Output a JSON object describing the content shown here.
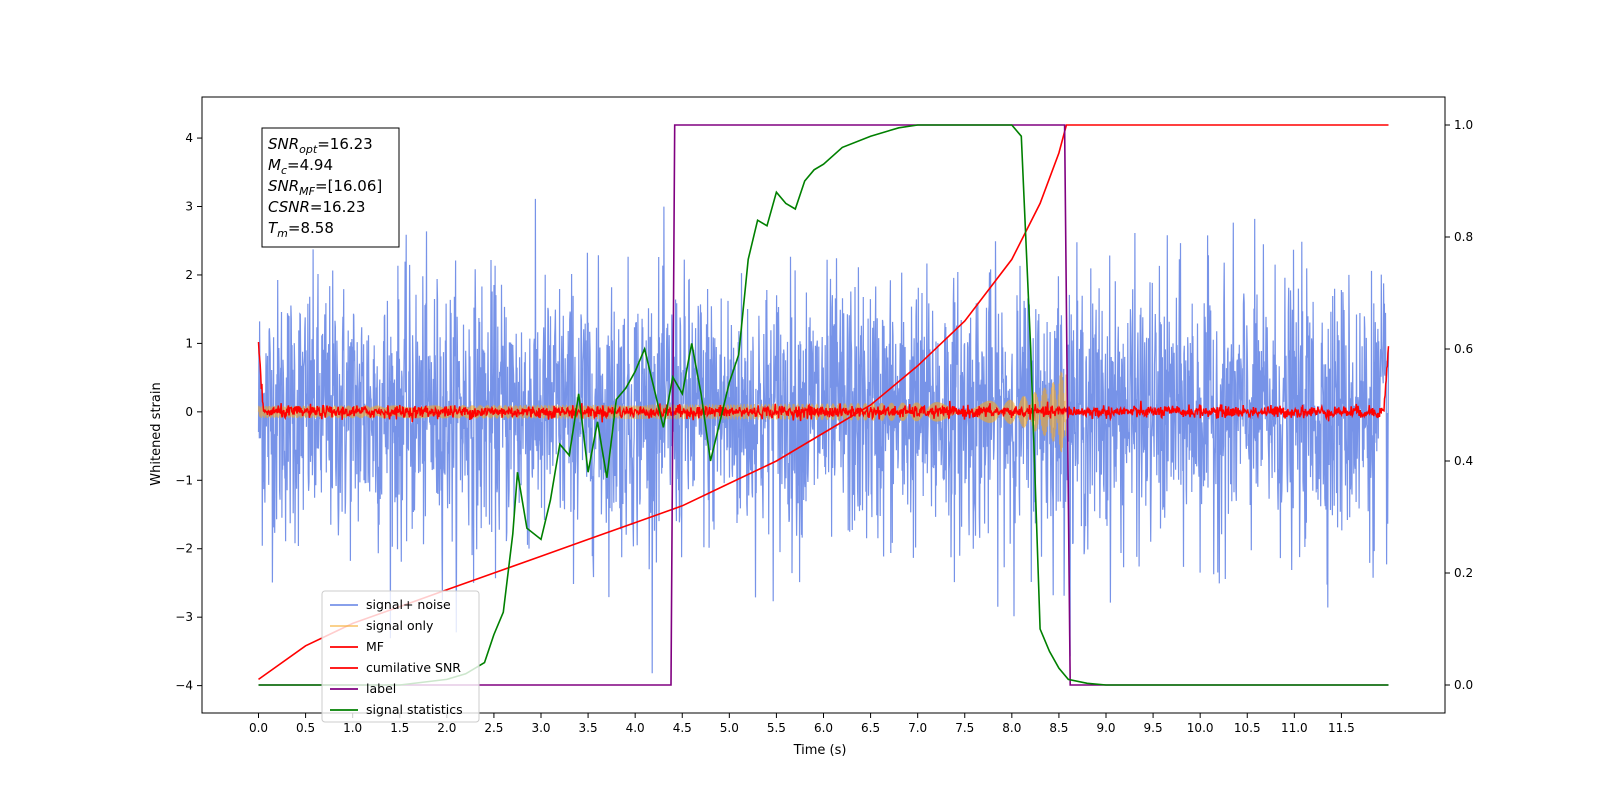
{
  "chart_data": {
    "type": "line",
    "title": "",
    "xlabel": "Time (s)",
    "ylabel": "Whitened strain",
    "y2label": "",
    "xlim": [
      -0.6,
      12.6
    ],
    "ylim": [
      -4.4,
      4.6
    ],
    "y2lim": [
      -0.05,
      1.05
    ],
    "x_ticks": [
      "0.0",
      "0.5",
      "1.0",
      "1.5",
      "2.0",
      "2.5",
      "3.0",
      "3.5",
      "4.0",
      "4.5",
      "5.0",
      "5.5",
      "6.0",
      "6.5",
      "7.0",
      "7.5",
      "8.0",
      "8.5",
      "9.0",
      "9.5",
      "10.0",
      "10.5",
      "11.0",
      "11.5"
    ],
    "y_ticks": [
      "−4",
      "−3",
      "−2",
      "−1",
      "0",
      "1",
      "2",
      "3",
      "4"
    ],
    "y2_ticks": [
      "0.0",
      "0.2",
      "0.4",
      "0.6",
      "0.8",
      "1.0"
    ],
    "grid": false,
    "legend_position": "lower-left",
    "annotation_box": {
      "lines": [
        {
          "sym": "SNR",
          "sub": "opt",
          "value": "=16.23"
        },
        {
          "sym": "M",
          "sub": "c",
          "value": "=4.94"
        },
        {
          "sym": "SNR",
          "sub": "MF",
          "value": "=[16.06]"
        },
        {
          "sym": "CSNR",
          "sub": "",
          "value": "=16.23"
        },
        {
          "sym": "T",
          "sub": "m",
          "value": "=8.58"
        }
      ]
    },
    "series": [
      {
        "name": "signal+ noise",
        "color": "#4a6fe0",
        "axis": "left",
        "description_kind": "noise",
        "std": 0.95,
        "x_range": [
          0.0,
          12.0
        ]
      },
      {
        "name": "signal only",
        "color": "#f5a623",
        "axis": "left",
        "description_kind": "chirp",
        "x_range": [
          0.0,
          8.58
        ],
        "amplitude_end": 1.0
      },
      {
        "name": "MF",
        "color": "#ff0000",
        "axis": "left",
        "description_kind": "mf_noise",
        "x_range": [
          0.0,
          12.0
        ]
      },
      {
        "name": "cumilative SNR",
        "color": "#ff0000",
        "axis": "right",
        "x": [
          0.0,
          0.5,
          1.0,
          1.5,
          2.0,
          2.5,
          3.0,
          3.5,
          4.0,
          4.5,
          5.0,
          5.5,
          6.0,
          6.5,
          7.0,
          7.5,
          8.0,
          8.3,
          8.5,
          8.58,
          12.0
        ],
        "y": [
          0.01,
          0.07,
          0.11,
          0.14,
          0.17,
          0.2,
          0.23,
          0.26,
          0.29,
          0.32,
          0.36,
          0.4,
          0.45,
          0.5,
          0.57,
          0.65,
          0.76,
          0.86,
          0.95,
          1.0,
          1.0
        ]
      },
      {
        "name": "label",
        "color": "#800080",
        "axis": "right",
        "x": [
          0.0,
          4.38,
          4.42,
          8.56,
          8.62,
          12.0
        ],
        "y": [
          0.0,
          0.0,
          1.0,
          1.0,
          0.0,
          0.0
        ]
      },
      {
        "name": "signal statistics",
        "color": "#008000",
        "axis": "right",
        "x": [
          0.0,
          1.5,
          2.0,
          2.2,
          2.4,
          2.5,
          2.6,
          2.7,
          2.75,
          2.85,
          3.0,
          3.1,
          3.2,
          3.3,
          3.4,
          3.5,
          3.6,
          3.7,
          3.8,
          3.9,
          4.0,
          4.1,
          4.2,
          4.3,
          4.4,
          4.5,
          4.6,
          4.7,
          4.8,
          4.9,
          5.0,
          5.1,
          5.2,
          5.3,
          5.4,
          5.5,
          5.6,
          5.7,
          5.8,
          5.9,
          6.0,
          6.2,
          6.5,
          6.8,
          7.0,
          7.5,
          8.0,
          8.1,
          8.2,
          8.3,
          8.4,
          8.5,
          8.6,
          8.8,
          9.0,
          12.0
        ],
        "y": [
          0.0,
          0.0,
          0.01,
          0.02,
          0.04,
          0.09,
          0.13,
          0.27,
          0.38,
          0.28,
          0.26,
          0.33,
          0.43,
          0.41,
          0.52,
          0.38,
          0.47,
          0.37,
          0.51,
          0.53,
          0.56,
          0.6,
          0.53,
          0.46,
          0.55,
          0.52,
          0.61,
          0.52,
          0.4,
          0.47,
          0.54,
          0.59,
          0.76,
          0.83,
          0.82,
          0.88,
          0.86,
          0.85,
          0.9,
          0.92,
          0.93,
          0.96,
          0.98,
          0.995,
          1.0,
          1.0,
          1.0,
          0.98,
          0.6,
          0.1,
          0.06,
          0.03,
          0.01,
          0.003,
          0.0,
          0.0
        ]
      }
    ]
  }
}
